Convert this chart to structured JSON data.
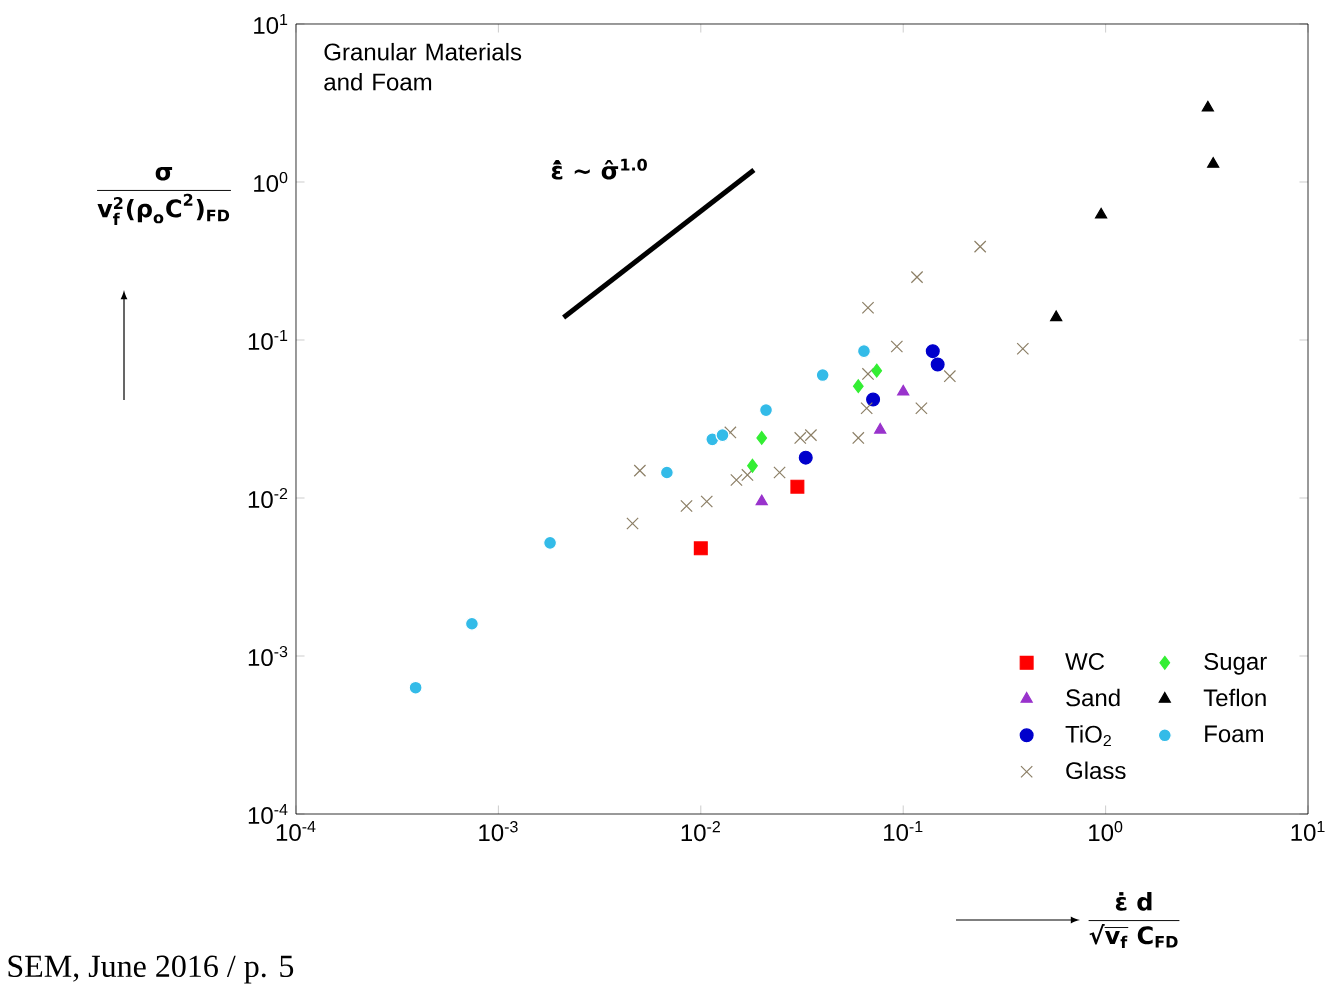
{
  "chart_data": {
    "type": "scatter",
    "xlabel": "\\frac{\\text{ε̇ d}}{\\text{√}\\overline{\\text{v}_{\\text{f}}}\\text{ C}_{\\text{FD}}}",
    "ylabel": "\\frac{\\text{σ}}{\\text{v}_{\\text{f}}^{\\text{2}}\\text{(ρ}_{\\text{o}}\\text{C}^{\\text{2}}\\text{)}_{\\text{FD}}}",
    "log": "xy",
    "legend": "bottom right",
    "xlim": [
      0.0001,
      10
    ],
    "ylim": [
      0.0001,
      10
    ],
    "xticks": [
      {
        "value": 0.0001,
        "label": "10$^{-4}$"
      },
      {
        "value": 0.001,
        "label": "10$^{-3}$"
      },
      {
        "value": 0.01,
        "label": "10$^{-2}$"
      },
      {
        "value": 0.1,
        "label": "10$^{-1}$"
      },
      {
        "value": 1,
        "label": "10$^{0}$"
      },
      {
        "value": 10,
        "label": "10$^{1}$"
      }
    ],
    "yticks": [
      {
        "value": 0.0001,
        "label": "10$^{-4}$"
      },
      {
        "value": 0.001,
        "label": "10$^{-3}$"
      },
      {
        "value": 0.01,
        "label": "10$^{-2}$"
      },
      {
        "value": 0.1,
        "label": "10$^{-1}$"
      },
      {
        "value": 1,
        "label": "10$^{0}$"
      },
      {
        "value": 10,
        "label": "10$^{1}$"
      }
    ],
    "series": [
      {
        "name": "WC",
        "color": "#ff0000",
        "marker": "square",
        "x": [
          0.01,
          0.03
        ],
        "values": [
          0.0048,
          0.0118
        ]
      },
      {
        "name": "Sand",
        "color": "#9933cc",
        "marker": "triangle",
        "x": [
          0.02,
          0.077,
          0.1
        ],
        "values": [
          0.0095,
          0.027,
          0.047
        ]
      },
      {
        "name": "TiO$_{2}$",
        "color": "#0000cc",
        "marker": "circle",
        "x": [
          0.033,
          0.071,
          0.14,
          0.148
        ],
        "values": [
          0.018,
          0.042,
          0.085,
          0.07
        ]
      },
      {
        "name": "Glass",
        "color": "#8c7f66",
        "marker": "cross",
        "x": [
          0.005,
          0.0046,
          0.0085,
          0.0107,
          0.014,
          0.015,
          0.017,
          0.0245,
          0.031,
          0.035,
          0.06,
          0.066,
          0.067,
          0.093,
          0.123,
          0.17,
          0.067,
          0.117,
          0.24,
          0.39
        ],
        "values": [
          0.0149,
          0.0069,
          0.0089,
          0.0095,
          0.026,
          0.013,
          0.014,
          0.0145,
          0.024,
          0.025,
          0.024,
          0.037,
          0.061,
          0.091,
          0.037,
          0.059,
          0.16,
          0.25,
          0.39,
          0.088
        ]
      },
      {
        "name": "Sugar",
        "color": "#33ee33",
        "marker": "diamond",
        "x": [
          0.02,
          0.018,
          0.06,
          0.074
        ],
        "values": [
          0.024,
          0.016,
          0.051,
          0.064
        ]
      },
      {
        "name": "Teflon",
        "color": "#000000",
        "marker": "triangle",
        "x": [
          3.2,
          3.4,
          0.95,
          0.57
        ],
        "values": [
          2.95,
          1.3,
          0.62,
          0.139
        ]
      },
      {
        "name": "Foam",
        "color": "#33bbe8",
        "marker": "circle",
        "x": [
          0.00039,
          0.00074,
          0.0018,
          0.0068,
          0.0114,
          0.0128,
          0.021,
          0.04,
          0.064
        ],
        "values": [
          0.00063,
          0.0016,
          0.0052,
          0.0145,
          0.0235,
          0.025,
          0.036,
          0.06,
          0.085
        ]
      },
      {
        "type": "line",
        "color": "#000000",
        "marker": "none",
        "x": [
          0.0021,
          0.0183
        ],
        "values": [
          0.139,
          1.19
        ]
      }
    ],
    "annotations": [
      "Granular Materials and Foam",
      "ε̂̇ ~ σ̂$^{1.0}$",
      "SEM, June 2016 / p. 5"
    ]
  }
}
